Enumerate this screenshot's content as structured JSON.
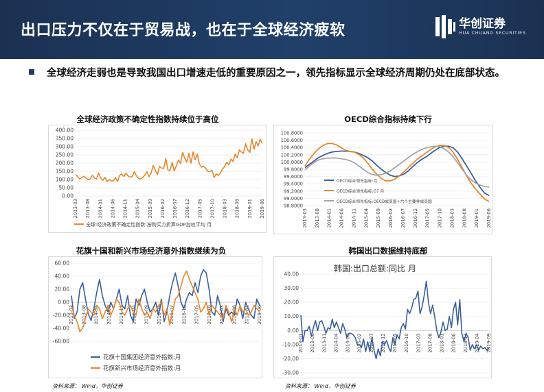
{
  "header": {
    "title": "出口压力不仅在于贸易战，也在于全球经济疲软",
    "logo_cn": "华创证券",
    "logo_en": "HUA CHUANG SECURITIES"
  },
  "bullet": {
    "text": "全球经济走弱也是导致我国出口增速走低的重要原因之一，领先指标显示全球经济周期仍处在底部状态。"
  },
  "source_note": "资料来源： Wind，华创证券",
  "colors": {
    "orange": "#e8862a",
    "blue": "#3a5f9c",
    "gray": "#a6a6a6",
    "navy": "#1d3557"
  },
  "chart_data": [
    {
      "panel_title": "全球经济政策不确定性指数持续位于高位",
      "type": "line",
      "ylim": [
        0,
        400
      ],
      "yticks": [
        "400.00",
        "350.00",
        "300.00",
        "250.00",
        "200.00",
        "150.00",
        "100.00",
        "50.00",
        "0.00"
      ],
      "x_labels": [
        "2013-03",
        "2013-08",
        "2014-01",
        "2014-06",
        "2014-11",
        "2015-04",
        "2015-09",
        "2016-02",
        "2016-07",
        "2016-12",
        "2017-05",
        "2017-10",
        "2018-03",
        "2018-08",
        "2019-01",
        "2019-06"
      ],
      "series": [
        {
          "name": "全球:经济政策不确定性指数:按购买力折算GDP加权平均 月",
          "color": "#e8862a",
          "values": [
            130,
            118,
            104,
            112,
            120,
            108,
            99,
            103,
            126,
            109,
            104,
            140,
            110,
            95,
            113,
            88,
            99,
            92,
            92,
            112,
            88,
            125,
            134,
            118,
            139,
            122,
            115,
            118,
            148,
            123,
            108,
            103,
            112,
            127,
            148,
            117,
            140,
            186,
            155,
            130,
            180,
            170,
            168,
            228,
            158,
            155,
            205,
            152,
            183,
            219,
            198,
            265,
            230,
            205,
            260,
            200,
            268,
            220,
            255,
            195,
            175,
            182,
            168,
            150,
            147,
            157,
            112,
            135,
            125,
            140,
            162,
            180,
            205,
            190,
            225,
            210,
            255,
            232,
            280,
            268,
            260,
            318,
            280,
            265,
            348,
            285,
            330,
            305,
            345,
            320
          ]
        }
      ]
    },
    {
      "panel_title": "OECD综合指标持续下行",
      "type": "line",
      "ylim": [
        98.8,
        101.0
      ],
      "yticks": [
        "100.8000",
        "100.6000",
        "100.4000",
        "100.2000",
        "100.0000",
        "99.8000",
        "99.6000",
        "99.4000",
        "99.2000",
        "99.0000",
        "98.8000"
      ],
      "x_labels": [
        "2013-03",
        "2013-08",
        "2014-01",
        "2014-06",
        "2014-11",
        "2015-04",
        "2015-09",
        "2016-02",
        "2016-07",
        "2016-12",
        "2017-05",
        "2017-10",
        "2018-03",
        "2018-08",
        "2019-01",
        "2019-06"
      ],
      "series": [
        {
          "name": "OECD综合领先指标:月",
          "color": "#3a5f9c",
          "values": [
            99.95,
            100.05,
            100.15,
            100.25,
            100.32,
            100.38,
            100.42,
            100.44,
            100.45,
            100.45,
            100.44,
            100.42,
            100.38,
            100.32,
            100.25,
            100.15,
            100.02,
            99.9,
            99.8,
            99.72,
            99.68,
            99.7,
            99.75,
            99.85,
            99.98,
            100.1,
            100.2,
            100.28,
            100.38,
            100.48,
            100.56,
            100.6,
            100.6,
            100.55,
            100.42,
            100.22,
            100.0,
            99.78,
            99.55,
            99.35,
            99.18,
            99.1
          ]
        },
        {
          "name": "OECD综合领先指标:G7 月",
          "color": "#e8862a",
          "values": [
            100.0,
            100.2,
            100.38,
            100.52,
            100.62,
            100.68,
            100.68,
            100.64,
            100.56,
            100.48,
            100.44,
            100.42,
            100.35,
            100.24,
            100.08,
            99.9,
            99.75,
            99.62,
            99.55,
            99.55,
            99.6,
            99.7,
            99.82,
            99.95,
            100.08,
            100.2,
            100.3,
            100.4,
            100.5,
            100.58,
            100.62,
            100.62,
            100.56,
            100.42,
            100.2,
            99.95,
            99.7,
            99.48,
            99.3,
            99.15,
            99.0,
            98.92
          ]
        },
        {
          "name": "OECD综合领先指标:OECD成员国+六个主要非成员国",
          "color": "#a6a6a6",
          "values": [
            99.88,
            100.0,
            100.1,
            100.18,
            100.22,
            100.24,
            100.24,
            100.24,
            100.22,
            100.2,
            100.16,
            100.1,
            100.0,
            99.9,
            99.8,
            99.74,
            99.72,
            99.74,
            99.78,
            99.85,
            99.95,
            100.05,
            100.15,
            100.25,
            100.35,
            100.43,
            100.5,
            100.55,
            100.58,
            100.6,
            100.58,
            100.52,
            100.42,
            100.28,
            100.1,
            99.9,
            99.72,
            99.58,
            99.48,
            99.42,
            99.38,
            99.36
          ]
        }
      ]
    },
    {
      "panel_title": "花旗十国和新兴市场经济意外指数继续为负",
      "type": "line",
      "ylim": [
        -60,
        60
      ],
      "yticks": [
        "60.00",
        "40.00",
        "20.00",
        "0.00",
        "-20.00",
        "-40.00",
        "-60.00"
      ],
      "x_labels": [
        "2013-03",
        "2013-08",
        "2014-01",
        "2014-06",
        "2014-11",
        "2015-04",
        "2015-09",
        "2016-02",
        "2016-07",
        "2016-12",
        "2017-05",
        "2017-10",
        "2018-03",
        "2018-08",
        "2019-01",
        "2019-06"
      ],
      "series": [
        {
          "name": "花旗十国集团经济意外指数:月",
          "color": "#3a5f9c",
          "values": [
            10,
            -25,
            -15,
            20,
            30,
            5,
            -18,
            -28,
            -10,
            15,
            35,
            10,
            -5,
            -15,
            0,
            -10,
            5,
            20,
            -5,
            -10,
            10,
            -20,
            -30,
            5,
            -5,
            10,
            20,
            0,
            -15,
            -10,
            0,
            -20,
            5,
            -30,
            -15,
            10,
            30,
            45,
            25,
            0,
            -10,
            5,
            15,
            10,
            30,
            15,
            40,
            50,
            45,
            20,
            -15,
            -20,
            10,
            -5,
            -30,
            -10,
            -20,
            -15,
            -20,
            5,
            -5,
            -25,
            0,
            -10,
            -20,
            -25,
            5,
            -5
          ]
        },
        {
          "name": "花旗新兴市场经济意外指数:月",
          "color": "#e8862a",
          "values": [
            -5,
            -20,
            -30,
            -45,
            -40,
            -25,
            -10,
            -15,
            -20,
            -5,
            -10,
            -25,
            -15,
            -5,
            -20,
            -10,
            5,
            0,
            -15,
            -20,
            -10,
            -5,
            -15,
            -20,
            5,
            -10,
            -20,
            -15,
            -25,
            -10,
            -15,
            -5,
            0,
            -20,
            -10,
            -35,
            -15,
            5,
            10,
            25,
            40,
            48,
            35,
            25,
            15,
            5,
            -15,
            -10,
            0,
            -20,
            -5,
            -10,
            -15,
            -20,
            -25,
            -5,
            -15,
            -30,
            -10,
            -20,
            -5,
            -15,
            -10,
            -20,
            -15,
            -5,
            -10,
            -15
          ]
        }
      ]
    },
    {
      "panel_title": "韩国出口数据维持底部",
      "type": "line",
      "inner_title": "韩国:出口总额:同比 月",
      "ylim": [
        -30,
        40
      ],
      "yticks": [
        "40.00",
        "30.00",
        "20.00",
        "10.00",
        "0.00",
        "-10.00",
        "-20.00",
        "-30.00"
      ],
      "x_labels": [
        "2013-01",
        "2013-06",
        "2013-11",
        "2014-04",
        "2014-09",
        "2015-02",
        "2015-07",
        "2015-12",
        "2016-05",
        "2016-10",
        "2017-03",
        "2017-08",
        "2018-01",
        "2018-06",
        "2018-11",
        "2019-04",
        "2019-09"
      ],
      "series": [
        {
          "name": "韩国:出口总额:同比 月",
          "color": "#3a5f9c",
          "values": [
            11,
            -8,
            0,
            0,
            3,
            -4,
            2,
            7,
            0,
            6,
            7,
            3,
            -2,
            2,
            1,
            8,
            2,
            6,
            2,
            -2,
            5,
            1,
            -5,
            -2,
            -2,
            -3,
            -5,
            -10,
            -10,
            -12,
            -6,
            -15,
            -8,
            -15,
            -5,
            -14,
            -20,
            -13,
            -18,
            -8,
            -10,
            -7,
            -12,
            -15,
            -5,
            -10,
            -3,
            -6,
            2,
            5,
            1,
            15,
            12,
            16,
            22,
            23,
            28,
            12,
            17,
            25,
            35,
            20,
            12,
            18,
            10,
            0,
            -5,
            -1,
            6,
            0,
            1,
            10,
            2,
            15,
            20,
            4,
            22,
            -2,
            -8,
            -2,
            -5,
            -14,
            -10,
            -13,
            -10,
            -14,
            -11,
            -13,
            -12,
            -14,
            -12
          ]
        }
      ]
    }
  ]
}
